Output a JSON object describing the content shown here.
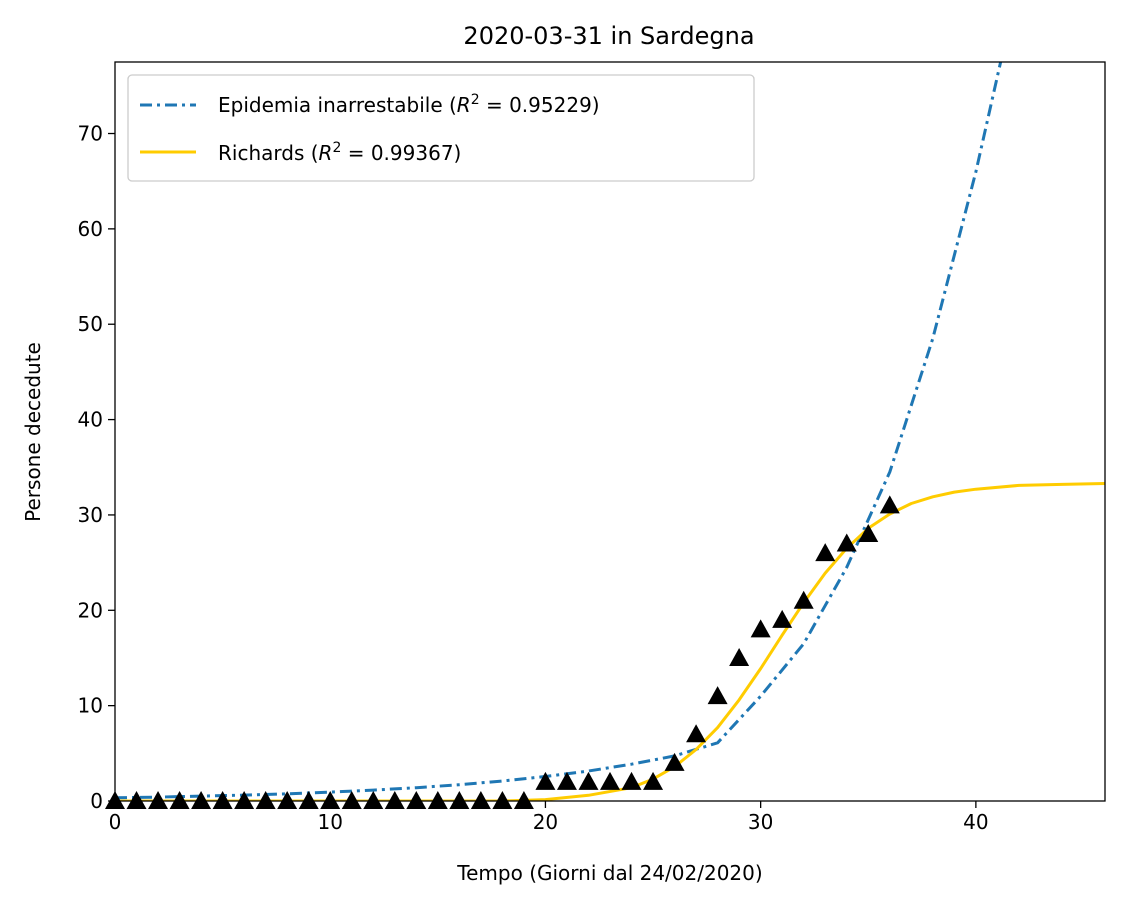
{
  "chart_data": {
    "type": "line",
    "title": "2020-03-31 in Sardegna",
    "xlabel": "Tempo (Giorni dal 24/02/2020)",
    "ylabel": "Persone decedute",
    "xlim": [
      0,
      46
    ],
    "ylim": [
      0,
      77.5
    ],
    "xticks": [
      0,
      10,
      20,
      30,
      40
    ],
    "yticks": [
      0,
      10,
      20,
      30,
      40,
      50,
      60,
      70
    ],
    "grid": false,
    "legend_position": "top-left",
    "series": [
      {
        "name_prefix": "Epidemia inarrestabile (",
        "r2_symbol": "R",
        "r2_exponent": "2",
        "r2_value": " = 0.95229)",
        "kind": "line",
        "style": "dash-dot",
        "color": "#1f77b4",
        "x": [
          0,
          2,
          4,
          6,
          8,
          10,
          12,
          14,
          16,
          18,
          20,
          22,
          24,
          26,
          28,
          30,
          32,
          34,
          36,
          38,
          40,
          41.2
        ],
        "y": [
          0.34,
          0.41,
          0.51,
          0.62,
          0.76,
          0.93,
          1.14,
          1.4,
          1.71,
          2.1,
          2.57,
          3.15,
          3.86,
          4.73,
          6.1,
          11.0,
          16.5,
          24.5,
          34.5,
          48.5,
          66.0,
          78.0
        ]
      },
      {
        "name_prefix": "Richards (",
        "r2_symbol": "R",
        "r2_exponent": "2",
        "r2_value": " = 0.99367)",
        "kind": "line",
        "style": "solid",
        "color": "#ffcc00",
        "x": [
          0,
          18,
          20,
          22,
          24,
          25,
          26,
          27,
          28,
          29,
          30,
          31,
          32,
          33,
          34,
          35,
          36,
          37,
          38,
          39,
          40,
          42,
          44,
          46
        ],
        "y": [
          0,
          0.0,
          0.15,
          0.6,
          1.4,
          2.3,
          3.6,
          5.4,
          7.7,
          10.6,
          13.9,
          17.4,
          20.8,
          23.9,
          26.5,
          28.6,
          30.1,
          31.2,
          31.9,
          32.4,
          32.7,
          33.1,
          33.2,
          33.3
        ]
      },
      {
        "kind": "scatter",
        "marker": "triangle",
        "color": "#000000",
        "x": [
          0,
          1,
          2,
          3,
          4,
          5,
          6,
          7,
          8,
          9,
          10,
          11,
          12,
          13,
          14,
          15,
          16,
          17,
          18,
          19,
          20,
          21,
          22,
          23,
          24,
          25,
          26,
          27,
          28,
          29,
          30,
          31,
          32,
          33,
          34,
          35,
          36
        ],
        "y": [
          0,
          0,
          0,
          0,
          0,
          0,
          0,
          0,
          0,
          0,
          0,
          0,
          0,
          0,
          0,
          0,
          0,
          0,
          0,
          0,
          2,
          2,
          2,
          2,
          2,
          2,
          4,
          7,
          11,
          15,
          18,
          19,
          21,
          26,
          27,
          28,
          31
        ]
      }
    ]
  }
}
